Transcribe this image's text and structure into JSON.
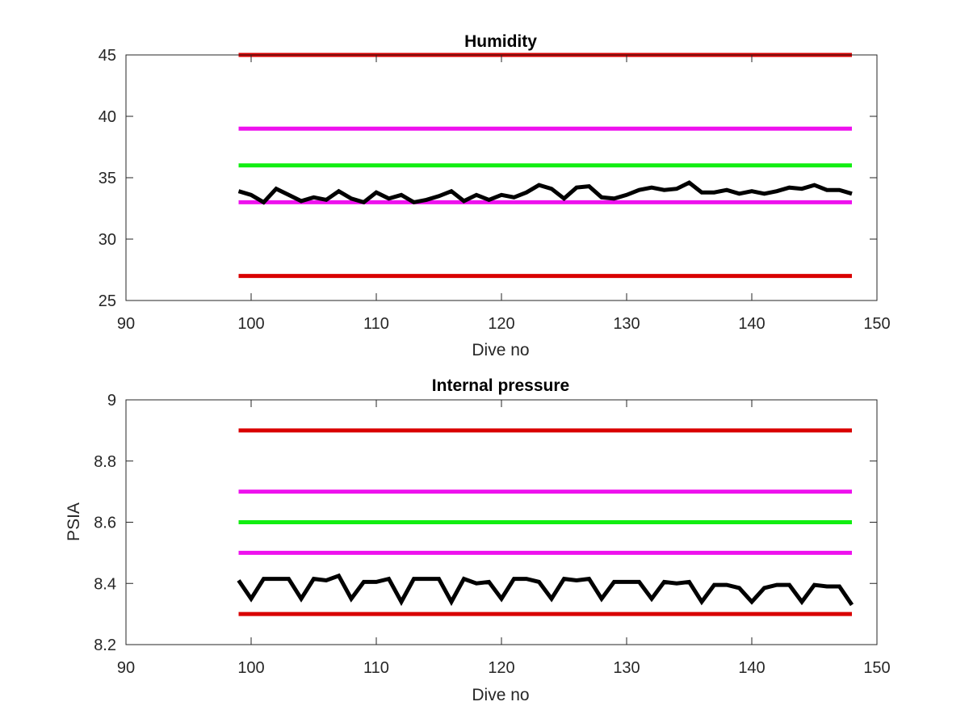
{
  "chart_data": [
    {
      "type": "line",
      "title": "Humidity",
      "xlabel": "Dive no",
      "ylabel": "",
      "xlim": [
        90,
        150
      ],
      "ylim": [
        25,
        45
      ],
      "xticks": [
        90,
        100,
        110,
        120,
        130,
        140,
        150
      ],
      "yticks": [
        25,
        30,
        35,
        40,
        45
      ],
      "grid": false,
      "series": [
        {
          "color": "#d90000",
          "x": [
            99,
            148
          ],
          "y": [
            45,
            45
          ]
        },
        {
          "color": "#ee11ee",
          "x": [
            99,
            148
          ],
          "y": [
            39,
            39
          ]
        },
        {
          "color": "#11ee11",
          "x": [
            99,
            148
          ],
          "y": [
            36,
            36
          ]
        },
        {
          "color": "#ee11ee",
          "x": [
            99,
            148
          ],
          "y": [
            33,
            33
          ]
        },
        {
          "color": "#d90000",
          "x": [
            99,
            148
          ],
          "y": [
            27,
            27
          ]
        },
        {
          "color": "#000000",
          "x": [
            99,
            100,
            101,
            102,
            103,
            104,
            105,
            106,
            107,
            108,
            109,
            110,
            111,
            112,
            113,
            114,
            115,
            116,
            117,
            118,
            119,
            120,
            121,
            122,
            123,
            124,
            125,
            126,
            127,
            128,
            129,
            130,
            131,
            132,
            133,
            134,
            135,
            136,
            137,
            138,
            139,
            140,
            141,
            142,
            143,
            144,
            145,
            146,
            147,
            148
          ],
          "y": [
            33.9,
            33.6,
            33.0,
            34.1,
            33.6,
            33.1,
            33.4,
            33.2,
            33.9,
            33.3,
            33.0,
            33.8,
            33.3,
            33.6,
            33.0,
            33.2,
            33.5,
            33.9,
            33.1,
            33.6,
            33.2,
            33.6,
            33.4,
            33.8,
            34.4,
            34.1,
            33.3,
            34.2,
            34.3,
            33.4,
            33.3,
            33.6,
            34.0,
            34.2,
            34.0,
            34.1,
            34.6,
            33.8,
            33.8,
            34.0,
            33.7,
            33.9,
            33.7,
            33.9,
            34.2,
            34.1,
            34.4,
            34.0,
            34.0,
            33.7
          ]
        }
      ]
    },
    {
      "type": "line",
      "title": "Internal pressure",
      "xlabel": "Dive no",
      "ylabel": "PSIA",
      "xlim": [
        90,
        150
      ],
      "ylim": [
        8.2,
        9
      ],
      "xticks": [
        90,
        100,
        110,
        120,
        130,
        140,
        150
      ],
      "yticks": [
        8.2,
        8.4,
        8.6,
        8.8,
        9
      ],
      "grid": false,
      "series": [
        {
          "color": "#d90000",
          "x": [
            99,
            148
          ],
          "y": [
            8.9,
            8.9
          ]
        },
        {
          "color": "#ee11ee",
          "x": [
            99,
            148
          ],
          "y": [
            8.7,
            8.7
          ]
        },
        {
          "color": "#11ee11",
          "x": [
            99,
            148
          ],
          "y": [
            8.6,
            8.6
          ]
        },
        {
          "color": "#ee11ee",
          "x": [
            99,
            148
          ],
          "y": [
            8.5,
            8.5
          ]
        },
        {
          "color": "#d90000",
          "x": [
            99,
            148
          ],
          "y": [
            8.3,
            8.3
          ]
        },
        {
          "color": "#000000",
          "x": [
            99,
            100,
            101,
            102,
            103,
            104,
            105,
            106,
            107,
            108,
            109,
            110,
            111,
            112,
            113,
            114,
            115,
            116,
            117,
            118,
            119,
            120,
            121,
            122,
            123,
            124,
            125,
            126,
            127,
            128,
            129,
            130,
            131,
            132,
            133,
            134,
            135,
            136,
            137,
            138,
            139,
            140,
            141,
            142,
            143,
            144,
            145,
            146,
            147,
            148
          ],
          "y": [
            8.41,
            8.35,
            8.415,
            8.415,
            8.415,
            8.35,
            8.415,
            8.41,
            8.425,
            8.35,
            8.405,
            8.405,
            8.415,
            8.34,
            8.415,
            8.415,
            8.415,
            8.34,
            8.415,
            8.4,
            8.405,
            8.35,
            8.415,
            8.415,
            8.405,
            8.35,
            8.415,
            8.41,
            8.415,
            8.35,
            8.405,
            8.405,
            8.405,
            8.35,
            8.405,
            8.4,
            8.405,
            8.34,
            8.395,
            8.395,
            8.385,
            8.34,
            8.385,
            8.395,
            8.395,
            8.34,
            8.395,
            8.39,
            8.39,
            8.33
          ]
        }
      ]
    }
  ]
}
